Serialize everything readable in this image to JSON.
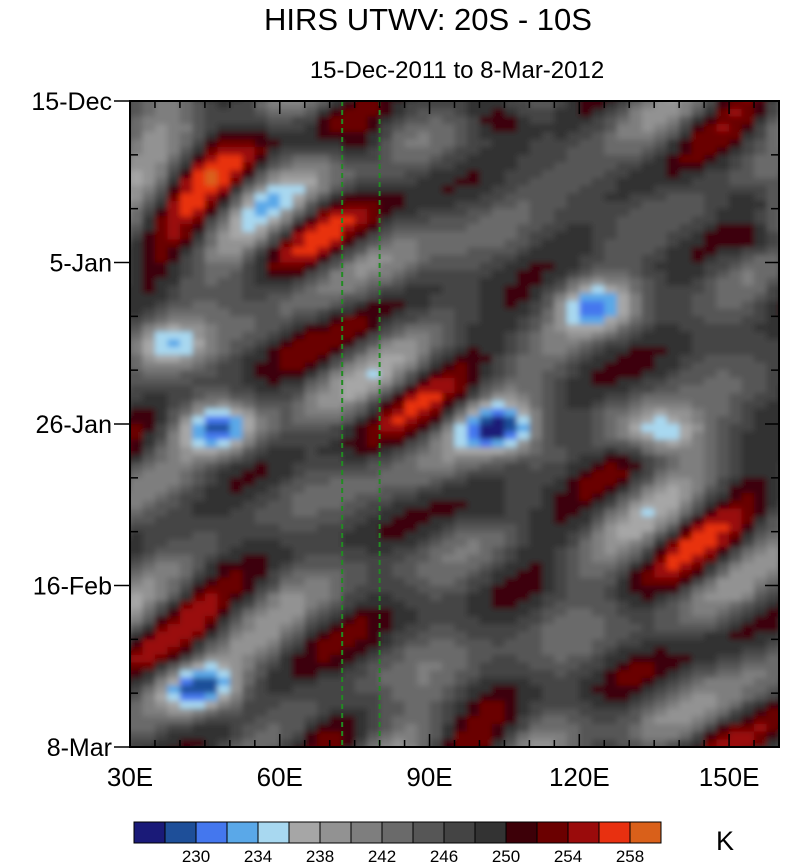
{
  "chart_data": {
    "type": "heatmap",
    "title": "HIRS UTWV: 20S - 10S",
    "subtitle": "15-Dec-2011 to 8-Mar-2012",
    "x_axis": {
      "range": [
        30,
        160
      ],
      "ticks": [
        30,
        60,
        90,
        120,
        150
      ],
      "tick_labels": [
        "30E",
        "60E",
        "90E",
        "120E",
        "150E"
      ]
    },
    "y_axis": {
      "range_days_from_start": [
        0,
        84
      ],
      "ticks_days": [
        0,
        21,
        42,
        63,
        84
      ],
      "tick_labels": [
        "15-Dec",
        "5-Jan",
        "26-Jan",
        "16-Feb",
        "8-Mar"
      ],
      "direction": "time increases downward"
    },
    "reference_lines": [
      {
        "lon": 72.5,
        "style": "dashed",
        "color": "#228b22"
      },
      {
        "lon": 80,
        "style": "dashed",
        "color": "#228b22"
      }
    ],
    "colorbar": {
      "units": "K",
      "levels": [
        228,
        230,
        232,
        234,
        236,
        238,
        240,
        242,
        244,
        246,
        248,
        250,
        252,
        254,
        256,
        258
      ],
      "labeled_levels": [
        "230",
        "234",
        "238",
        "242",
        "246",
        "250",
        "254",
        "258"
      ],
      "colors": [
        "#1a1a78",
        "#1e4f99",
        "#4477ee",
        "#5aa8e8",
        "#a8d8f0",
        "#a6a6a6",
        "#929292",
        "#7e7e7e",
        "#6a6a6a",
        "#565656",
        "#444444",
        "#333333",
        "#3d0008",
        "#6b0000",
        "#9a0b0b",
        "#e83010",
        "#d9601a"
      ]
    },
    "field_features": [
      {
        "lon": 103,
        "day": 2,
        "value": 255,
        "kind": "warm"
      },
      {
        "lon": 76,
        "day": 6,
        "value": 253.5,
        "kind": "warm"
      },
      {
        "lon": 154,
        "day": 17.5,
        "value": 255,
        "kind": "warm"
      },
      {
        "lon": 152,
        "day": 12.5,
        "value": 253,
        "kind": "warm"
      },
      {
        "lon": 115,
        "day": 42.5,
        "value": 253,
        "kind": "warm"
      },
      {
        "lon": 102,
        "day": 53,
        "value": 252.5,
        "kind": "warm"
      },
      {
        "lon": 47,
        "day": 42,
        "value": 231,
        "kind": "cold"
      },
      {
        "lon": 103,
        "day": 42,
        "value": 229.5,
        "kind": "cold"
      },
      {
        "lon": 135,
        "day": 42.5,
        "value": 232,
        "kind": "cold"
      },
      {
        "lon": 43,
        "day": 76,
        "value": 232,
        "kind": "cold"
      },
      {
        "lon": 122,
        "day": 26,
        "value": 233,
        "kind": "cold"
      },
      {
        "lon": 36,
        "day": 31,
        "value": 233,
        "kind": "cold"
      }
    ]
  }
}
